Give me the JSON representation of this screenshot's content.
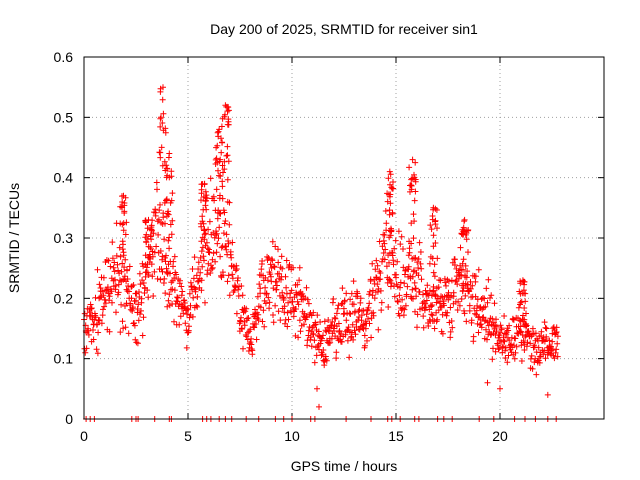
{
  "chart_data": {
    "type": "scatter",
    "title": "Day 200 of 2025, SRMTID for receiver sin1",
    "xlabel": "GPS time / hours",
    "ylabel": "SRMTID / TECUs",
    "xlim": [
      0,
      25
    ],
    "ylim": [
      0,
      0.6
    ],
    "xticks": [
      0,
      5,
      10,
      15,
      20
    ],
    "yticks": [
      0,
      0.1,
      0.2,
      0.3,
      0.4,
      0.5,
      0.6
    ],
    "grid": true,
    "marker": "+",
    "marker_color": "#ff0000",
    "trend": [
      [
        0.0,
        0.15
      ],
      [
        0.5,
        0.17
      ],
      [
        1.0,
        0.2
      ],
      [
        1.5,
        0.25
      ],
      [
        2.0,
        0.22
      ],
      [
        2.5,
        0.17
      ],
      [
        3.0,
        0.24
      ],
      [
        3.5,
        0.3
      ],
      [
        4.0,
        0.25
      ],
      [
        4.5,
        0.2
      ],
      [
        5.0,
        0.17
      ],
      [
        5.5,
        0.25
      ],
      [
        6.0,
        0.3
      ],
      [
        6.5,
        0.32
      ],
      [
        7.0,
        0.28
      ],
      [
        7.5,
        0.18
      ],
      [
        8.0,
        0.13
      ],
      [
        8.5,
        0.2
      ],
      [
        9.0,
        0.24
      ],
      [
        9.5,
        0.22
      ],
      [
        10.0,
        0.2
      ],
      [
        10.5,
        0.19
      ],
      [
        11.0,
        0.14
      ],
      [
        11.5,
        0.12
      ],
      [
        12.0,
        0.15
      ],
      [
        12.5,
        0.16
      ],
      [
        13.0,
        0.18
      ],
      [
        13.5,
        0.15
      ],
      [
        14.0,
        0.22
      ],
      [
        14.5,
        0.26
      ],
      [
        15.0,
        0.24
      ],
      [
        15.5,
        0.22
      ],
      [
        16.0,
        0.24
      ],
      [
        16.5,
        0.18
      ],
      [
        17.0,
        0.2
      ],
      [
        17.5,
        0.19
      ],
      [
        18.0,
        0.24
      ],
      [
        18.5,
        0.2
      ],
      [
        19.0,
        0.18
      ],
      [
        19.5,
        0.16
      ],
      [
        20.0,
        0.13
      ],
      [
        20.5,
        0.13
      ],
      [
        21.0,
        0.15
      ],
      [
        21.5,
        0.12
      ],
      [
        22.0,
        0.12
      ],
      [
        22.5,
        0.13
      ]
    ],
    "bursts": [
      {
        "x": 1.9,
        "y": 0.37
      },
      {
        "x": 3.1,
        "y": 0.33
      },
      {
        "x": 3.8,
        "y": 0.55
      },
      {
        "x": 4.1,
        "y": 0.44
      },
      {
        "x": 5.8,
        "y": 0.39
      },
      {
        "x": 6.5,
        "y": 0.48
      },
      {
        "x": 6.8,
        "y": 0.52
      },
      {
        "x": 14.7,
        "y": 0.41
      },
      {
        "x": 15.8,
        "y": 0.43
      },
      {
        "x": 16.8,
        "y": 0.35
      },
      {
        "x": 18.3,
        "y": 0.33
      },
      {
        "x": 21.1,
        "y": 0.23
      }
    ],
    "low_points": [
      {
        "x": 11.2,
        "y": 0.05
      },
      {
        "x": 11.3,
        "y": 0.02
      },
      {
        "x": 22.3,
        "y": 0.04
      },
      {
        "x": 20.0,
        "y": 0.05
      },
      {
        "x": 19.4,
        "y": 0.06
      }
    ],
    "zero_points": [
      0.1,
      0.3,
      0.5,
      2.3,
      2.5,
      2.6,
      3.4,
      4.1,
      4.2,
      5.7,
      5.9,
      6.1,
      6.5,
      6.8,
      7.1,
      7.8,
      8.4,
      9.2,
      9.6,
      10.0,
      10.9,
      11.1,
      12.6,
      13.8,
      14.6,
      14.8,
      15.2,
      15.9,
      16.1,
      17.0,
      17.3,
      17.7,
      19.0,
      19.7,
      20.7,
      21.2,
      21.7,
      22.3,
      22.7
    ]
  }
}
